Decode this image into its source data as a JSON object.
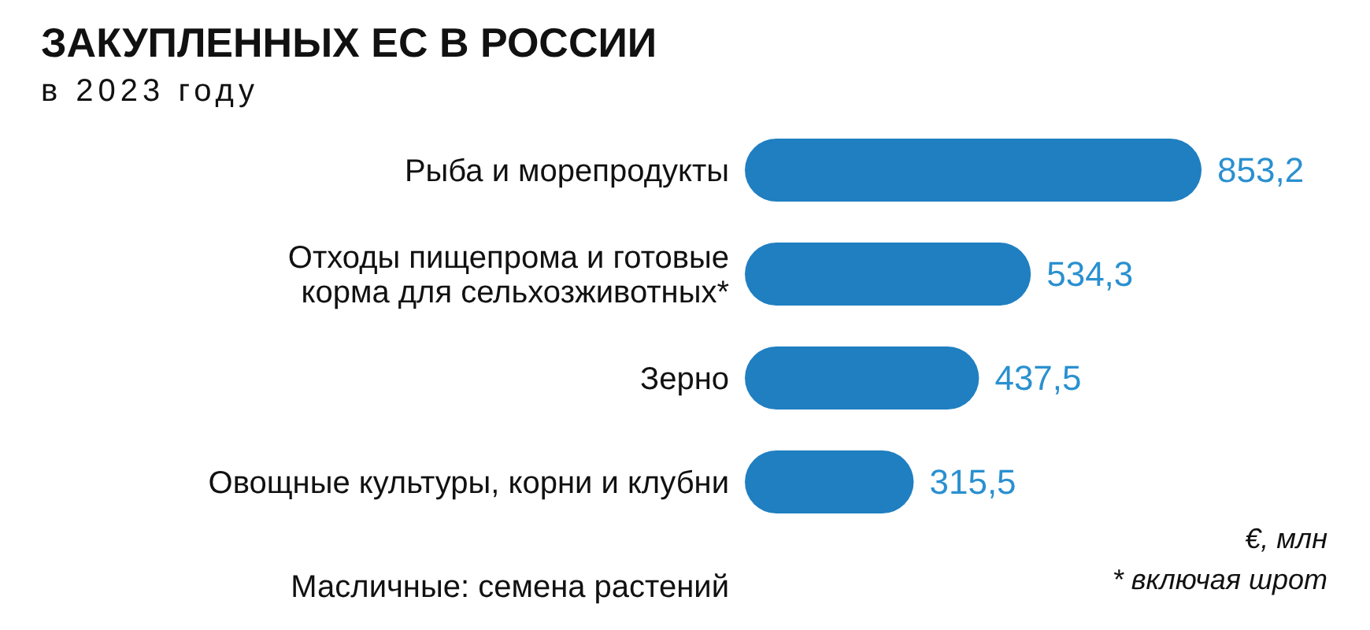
{
  "chart_data": {
    "type": "bar",
    "orientation": "horizontal",
    "title": "ЗАКУПЛЕННЫХ ЕС В РОССИИ",
    "subtitle": "в 2023 году",
    "categories": [
      "Рыба и морепродукты",
      "Отходы пищепрома и готовые\nкорма для сельхозживотных*",
      "Зерно",
      "Овощные культуры, корни и клубни",
      "Масличные: семена растений"
    ],
    "values": [
      853.2,
      534.3,
      437.5,
      315.5,
      null
    ],
    "value_labels": [
      "853,2",
      "534,3",
      "437,5",
      "315,5",
      null
    ],
    "color": "#1f7fc1",
    "annotations": [
      "€, млн",
      "* включая шрот"
    ]
  }
}
